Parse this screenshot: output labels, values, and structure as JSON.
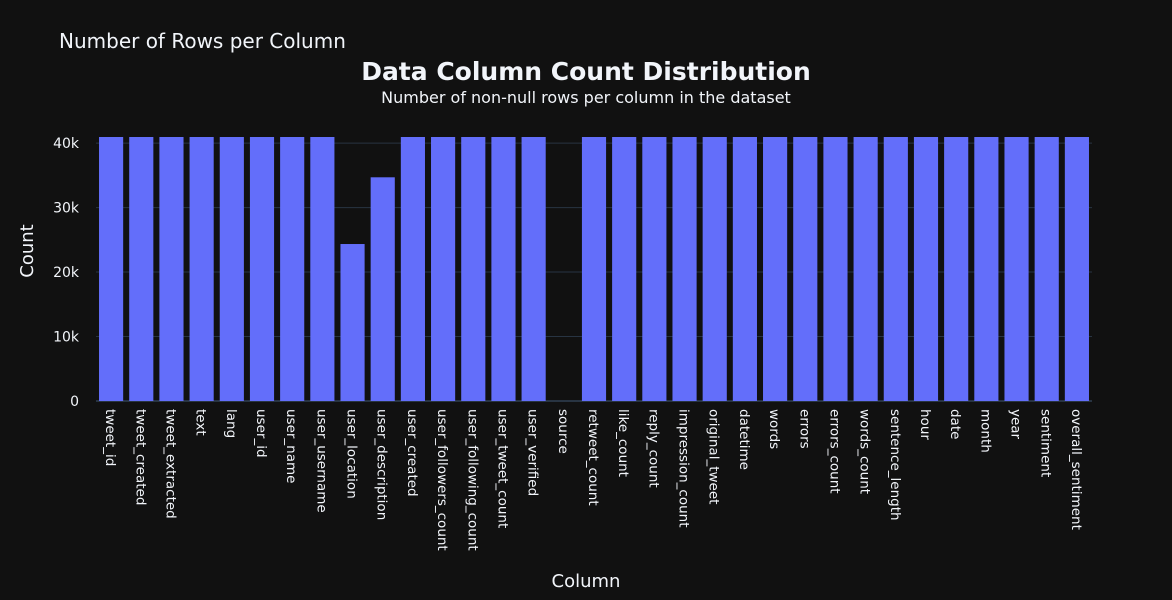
{
  "header": {
    "page_title": "Number of Rows per Column"
  },
  "colors": {
    "background": "#111111",
    "bar": "#636efa",
    "grid": "#283442",
    "text": "#f2f5fa"
  },
  "chart_data": {
    "type": "bar",
    "title": "Data Column Count Distribution",
    "subtitle": "Number of non-null rows per column in the dataset",
    "xlabel": "Column",
    "ylabel": "Count",
    "ylim": [
      0,
      40950
    ],
    "yticks": [
      0,
      10000,
      20000,
      30000,
      40000
    ],
    "ytick_labels": [
      "0",
      "10k",
      "20k",
      "30k",
      "40k"
    ],
    "grid": true,
    "categories": [
      "tweet_id",
      "tweet_created",
      "tweet_extracted",
      "text",
      "lang",
      "user_id",
      "user_name",
      "user_username",
      "user_location",
      "user_description",
      "user_created",
      "user_followers_count",
      "user_following_count",
      "user_tweet_count",
      "user_verified",
      "source",
      "retweet_count",
      "like_count",
      "reply_count",
      "impression_count",
      "original_tweet",
      "datetime",
      "words",
      "errors",
      "errors_count",
      "words_count",
      "sentence_length",
      "hour",
      "date",
      "month",
      "year",
      "sentiment",
      "overall_sentiment"
    ],
    "values": [
      40950,
      40950,
      40950,
      40950,
      40950,
      40950,
      40950,
      40950,
      24350,
      34700,
      40950,
      40950,
      40950,
      40950,
      40950,
      0,
      40950,
      40950,
      40950,
      40950,
      40950,
      40950,
      40950,
      40950,
      40950,
      40950,
      40950,
      40950,
      40950,
      40950,
      40950,
      40950,
      40950
    ]
  }
}
